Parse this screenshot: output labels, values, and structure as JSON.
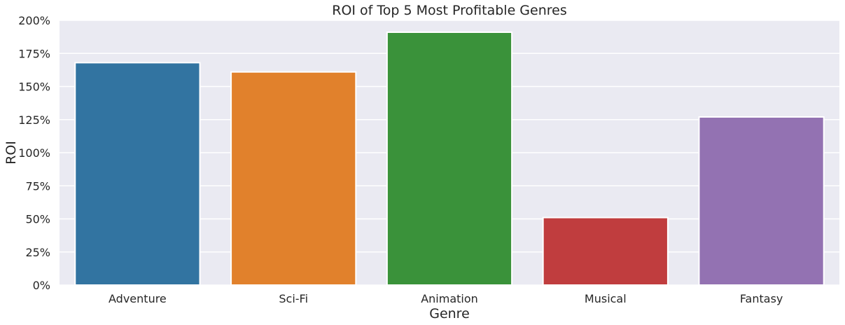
{
  "chart_data": {
    "type": "bar",
    "title": "ROI of Top 5 Most Profitable Genres",
    "xlabel": "Genre",
    "ylabel": "ROI",
    "categories": [
      "Adventure",
      "Sci-Fi",
      "Animation",
      "Musical",
      "Fantasy"
    ],
    "values": [
      168,
      161,
      191,
      51,
      127
    ],
    "unit": "%",
    "ylim": [
      0,
      200
    ],
    "yticks": [
      0,
      25,
      50,
      75,
      100,
      125,
      150,
      175,
      200
    ],
    "ytick_labels": [
      "0%",
      "25%",
      "50%",
      "75%",
      "100%",
      "125%",
      "150%",
      "175%",
      "200%"
    ],
    "grid": true,
    "legend": "none",
    "colors": [
      "#3274a1",
      "#e1812c",
      "#3a923a",
      "#c03d3e",
      "#9372b2"
    ],
    "background": "#eaeaf2"
  }
}
